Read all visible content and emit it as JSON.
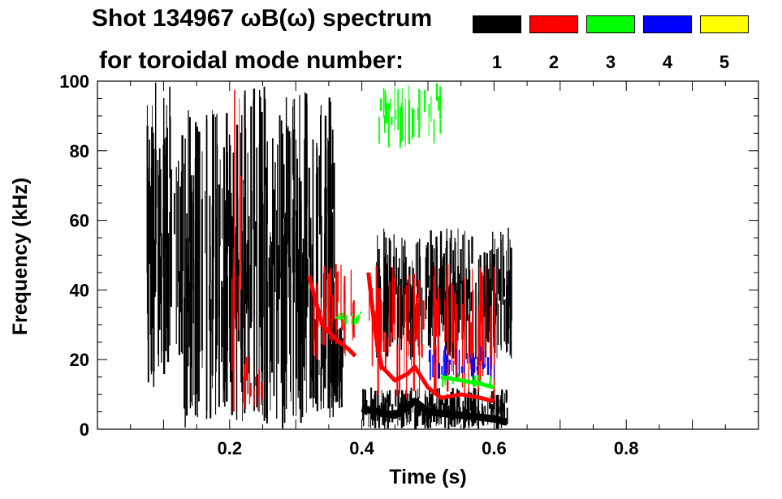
{
  "chart_data": {
    "type": "heatmap",
    "title_line1": "Shot 134967 ωB(ω) spectrum",
    "title_line2": "for toroidal mode number:",
    "xlabel": "Time (s)",
    "ylabel": "Frequency (kHz)",
    "xlim": [
      0.0,
      1.0
    ],
    "ylim": [
      0,
      100
    ],
    "xticks": [
      0.2,
      0.4,
      0.6,
      0.8
    ],
    "xtick_labels": [
      "0.2",
      "0.4",
      "0.6",
      "0.8"
    ],
    "yticks": [
      0,
      20,
      40,
      60,
      80,
      100
    ],
    "ytick_labels": [
      "0",
      "20",
      "40",
      "60",
      "80",
      "100"
    ],
    "legend_position": "top-right",
    "modes": [
      {
        "n": "1",
        "color": "#000000"
      },
      {
        "n": "2",
        "color": "#ff0000"
      },
      {
        "n": "3",
        "color": "#00ff00"
      },
      {
        "n": "4",
        "color": "#0000ff"
      },
      {
        "n": "5",
        "color": "#ffff00"
      }
    ],
    "regions": [
      {
        "mode": "1",
        "t": [
          0.07,
          0.12
        ],
        "f": [
          12,
          100
        ]
      },
      {
        "mode": "1",
        "t": [
          0.12,
          0.22
        ],
        "f": [
          0,
          92
        ]
      },
      {
        "mode": "1",
        "t": [
          0.22,
          0.36
        ],
        "f": [
          0,
          100
        ]
      },
      {
        "mode": "1",
        "t": [
          0.32,
          0.37
        ],
        "f": [
          6,
          32
        ]
      },
      {
        "mode": "1",
        "t": [
          0.4,
          0.62
        ],
        "f": [
          0,
          12
        ]
      },
      {
        "mode": "1",
        "t": [
          0.42,
          0.63
        ],
        "f": [
          20,
          58
        ]
      },
      {
        "mode": "2",
        "t": [
          0.2,
          0.22
        ],
        "f": [
          0,
          100
        ]
      },
      {
        "mode": "2",
        "t": [
          0.22,
          0.25
        ],
        "f": [
          5,
          22
        ]
      },
      {
        "mode": "2",
        "t": [
          0.32,
          0.39
        ],
        "f": [
          20,
          48
        ]
      },
      {
        "mode": "2",
        "t": [
          0.41,
          0.6
        ],
        "f": [
          8,
          48
        ]
      },
      {
        "mode": "3",
        "t": [
          0.42,
          0.52
        ],
        "f": [
          80,
          100
        ]
      },
      {
        "mode": "3",
        "t": [
          0.52,
          0.6
        ],
        "f": [
          12,
          16
        ]
      },
      {
        "mode": "3",
        "t": [
          0.36,
          0.4
        ],
        "f": [
          30,
          34
        ]
      },
      {
        "mode": "4",
        "t": [
          0.5,
          0.6
        ],
        "f": [
          14,
          24
        ]
      }
    ],
    "ridges": [
      {
        "mode": "1",
        "points": [
          [
            0.4,
            6
          ],
          [
            0.45,
            4
          ],
          [
            0.48,
            8
          ],
          [
            0.5,
            5
          ],
          [
            0.55,
            4
          ],
          [
            0.6,
            3
          ],
          [
            0.62,
            2
          ]
        ]
      },
      {
        "mode": "2",
        "points": [
          [
            0.41,
            45
          ],
          [
            0.42,
            28
          ],
          [
            0.43,
            18
          ],
          [
            0.45,
            14
          ],
          [
            0.47,
            16
          ],
          [
            0.48,
            18
          ],
          [
            0.5,
            12
          ],
          [
            0.52,
            9
          ],
          [
            0.55,
            10
          ],
          [
            0.58,
            9
          ],
          [
            0.6,
            8
          ]
        ]
      },
      {
        "mode": "2",
        "points": [
          [
            0.32,
            44
          ],
          [
            0.34,
            30
          ],
          [
            0.36,
            26
          ],
          [
            0.38,
            23
          ],
          [
            0.39,
            21
          ]
        ]
      },
      {
        "mode": "3",
        "points": [
          [
            0.52,
            15
          ],
          [
            0.55,
            14
          ],
          [
            0.58,
            13
          ],
          [
            0.6,
            12
          ]
        ]
      }
    ]
  }
}
